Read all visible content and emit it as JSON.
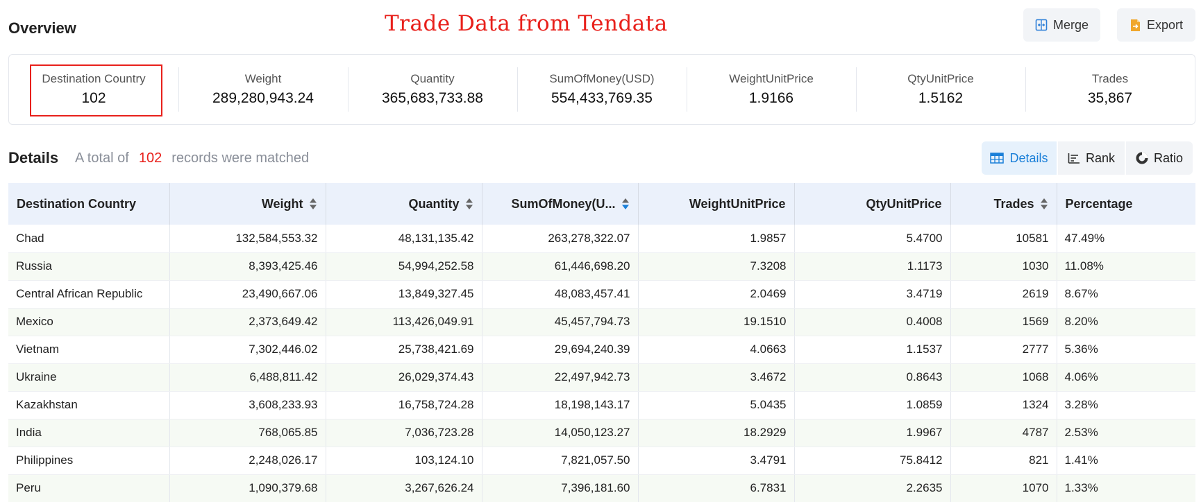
{
  "overview": {
    "title": "Overview"
  },
  "watermark": "Trade Data from Tendata",
  "buttons": {
    "merge": "Merge",
    "export": "Export"
  },
  "summary": [
    {
      "label": "Destination Country",
      "value": "102"
    },
    {
      "label": "Weight",
      "value": "289,280,943.24"
    },
    {
      "label": "Quantity",
      "value": "365,683,733.88"
    },
    {
      "label": "SumOfMoney(USD)",
      "value": "554,433,769.35"
    },
    {
      "label": "WeightUnitPrice",
      "value": "1.9166"
    },
    {
      "label": "QtyUnitPrice",
      "value": "1.5162"
    },
    {
      "label": "Trades",
      "value": "35,867"
    }
  ],
  "details": {
    "title": "Details",
    "prefix": "A total of",
    "count": "102",
    "suffix": "records were matched"
  },
  "view_tabs": {
    "details": "Details",
    "rank": "Rank",
    "ratio": "Ratio",
    "active": "details"
  },
  "colors": {
    "accent": "#1a7fd8",
    "highlight": "#e8201b",
    "header_bg": "#ebf1fb",
    "stripe": "#f6faf4"
  },
  "table": {
    "columns": [
      {
        "label": "Destination Country",
        "sortable": false
      },
      {
        "label": "Weight",
        "sortable": true
      },
      {
        "label": "Quantity",
        "sortable": true
      },
      {
        "label": "SumOfMoney(U...",
        "sortable": true,
        "sort_direction": "desc"
      },
      {
        "label": "WeightUnitPrice",
        "sortable": false
      },
      {
        "label": "QtyUnitPrice",
        "sortable": false
      },
      {
        "label": "Trades",
        "sortable": true
      },
      {
        "label": "Percentage",
        "sortable": false
      }
    ],
    "rows": [
      [
        "Chad",
        "132,584,553.32",
        "48,131,135.42",
        "263,278,322.07",
        "1.9857",
        "5.4700",
        "10581",
        "47.49%"
      ],
      [
        "Russia",
        "8,393,425.46",
        "54,994,252.58",
        "61,446,698.20",
        "7.3208",
        "1.1173",
        "1030",
        "11.08%"
      ],
      [
        "Central African Republic",
        "23,490,667.06",
        "13,849,327.45",
        "48,083,457.41",
        "2.0469",
        "3.4719",
        "2619",
        "8.67%"
      ],
      [
        "Mexico",
        "2,373,649.42",
        "113,426,049.91",
        "45,457,794.73",
        "19.1510",
        "0.4008",
        "1569",
        "8.20%"
      ],
      [
        "Vietnam",
        "7,302,446.02",
        "25,738,421.69",
        "29,694,240.39",
        "4.0663",
        "1.1537",
        "2777",
        "5.36%"
      ],
      [
        "Ukraine",
        "6,488,811.42",
        "26,029,374.43",
        "22,497,942.73",
        "3.4672",
        "0.8643",
        "1068",
        "4.06%"
      ],
      [
        "Kazakhstan",
        "3,608,233.93",
        "16,758,724.28",
        "18,198,143.17",
        "5.0435",
        "1.0859",
        "1324",
        "3.28%"
      ],
      [
        "India",
        "768,065.85",
        "7,036,723.28",
        "14,050,123.27",
        "18.2929",
        "1.9967",
        "4787",
        "2.53%"
      ],
      [
        "Philippines",
        "2,248,026.17",
        "103,124.10",
        "7,821,057.50",
        "3.4791",
        "75.8412",
        "821",
        "1.41%"
      ],
      [
        "Peru",
        "1,090,379.68",
        "3,267,626.24",
        "7,396,181.60",
        "6.7831",
        "2.2635",
        "1070",
        "1.33%"
      ]
    ]
  }
}
